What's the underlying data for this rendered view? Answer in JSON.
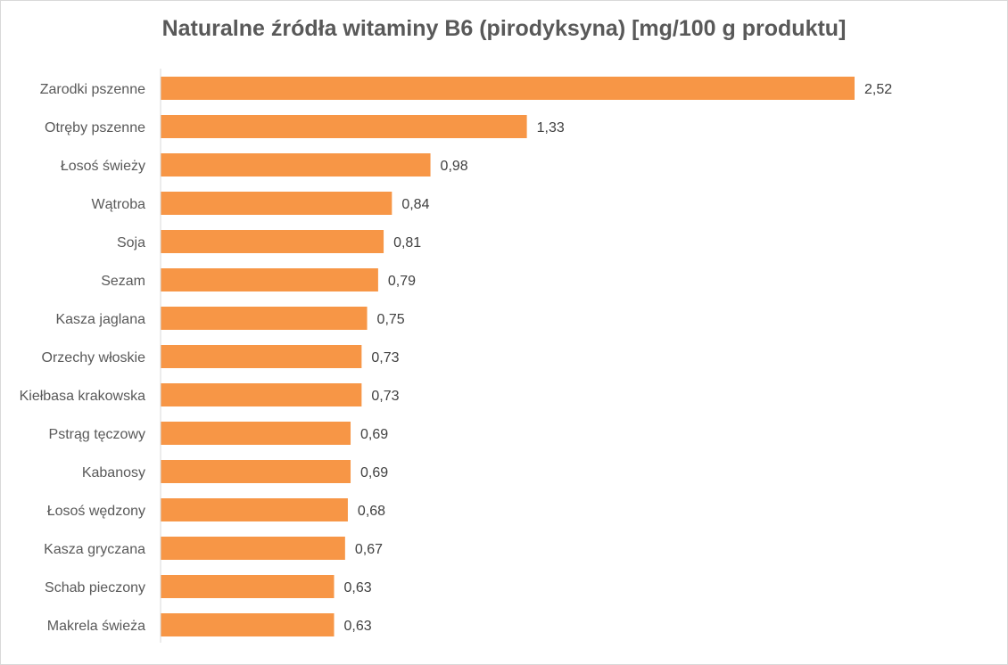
{
  "chart_data": {
    "type": "bar",
    "orientation": "horizontal",
    "title": "Naturalne źródła witaminy B6 (pirodyksyna) [mg/100 g produktu]",
    "xlabel": "",
    "ylabel": "",
    "categories": [
      "Zarodki pszenne",
      "Otręby pszenne",
      "Łosoś świeży",
      "Wątroba",
      "Soja",
      "Sezam",
      "Kasza jaglana",
      "Orzechy włoskie",
      "Kiełbasa krakowska",
      "Pstrąg tęczowy",
      "Kabanosy",
      "Łosoś wędzony",
      "Kasza gryczana",
      "Schab pieczony",
      "Makrela świeża"
    ],
    "values": [
      2.52,
      1.33,
      0.98,
      0.84,
      0.81,
      0.79,
      0.75,
      0.73,
      0.73,
      0.69,
      0.69,
      0.68,
      0.67,
      0.63,
      0.63
    ],
    "value_labels": [
      "2,52",
      "1,33",
      "0,98",
      "0,84",
      "0,81",
      "0,79",
      "0,75",
      "0,73",
      "0,73",
      "0,69",
      "0,69",
      "0,68",
      "0,67",
      "0,63",
      "0,63"
    ],
    "xlim": [
      0,
      2.52
    ],
    "grid": false,
    "legend": "none",
    "bar_color": "#F79646",
    "axis_color": "#d9d9d9"
  }
}
